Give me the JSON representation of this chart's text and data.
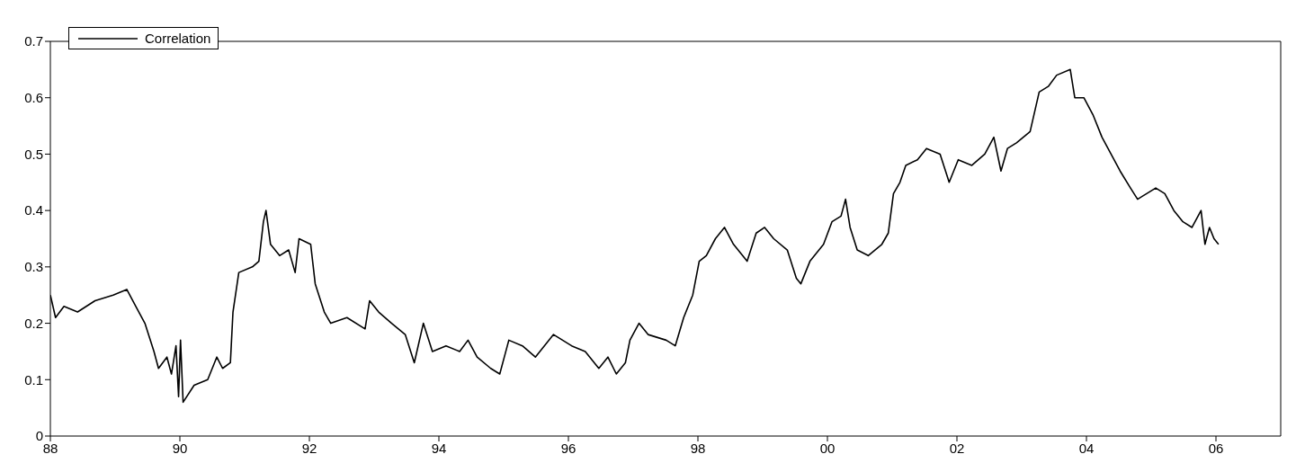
{
  "chart_data": {
    "type": "line",
    "legend": "top left",
    "grid": false,
    "marker": "none",
    "line_style": "solid",
    "xlim": [
      1988,
      2007
    ],
    "xticks": [
      {
        "value": 1988,
        "label": "88"
      },
      {
        "value": 1990,
        "label": "90"
      },
      {
        "value": 1992,
        "label": "92"
      },
      {
        "value": 1994,
        "label": "94"
      },
      {
        "value": 1996,
        "label": "96"
      },
      {
        "value": 1998,
        "label": "98"
      },
      {
        "value": 2000,
        "label": "00"
      },
      {
        "value": 2002,
        "label": "02"
      },
      {
        "value": 2004,
        "label": "04"
      },
      {
        "value": 2006,
        "label": "06"
      }
    ],
    "ylim": [
      0,
      0.7
    ],
    "yticks": [
      0,
      0.1,
      0.2,
      0.3,
      0.4,
      0.5,
      0.6,
      0.7
    ],
    "x": [
      1988.0,
      1988.08,
      1988.21,
      1988.42,
      1988.69,
      1988.97,
      1989.18,
      1989.32,
      1989.46,
      1989.6,
      1989.67,
      1989.8,
      1989.87,
      1989.94,
      1989.98,
      1990.01,
      1990.05,
      1990.22,
      1990.43,
      1990.57,
      1990.66,
      1990.78,
      1990.82,
      1990.91,
      1991.12,
      1991.22,
      1991.29,
      1991.33,
      1991.4,
      1991.54,
      1991.68,
      1991.78,
      1991.84,
      1992.02,
      1992.09,
      1992.23,
      1992.33,
      1992.58,
      1992.86,
      1992.93,
      1993.07,
      1993.27,
      1993.48,
      1993.62,
      1993.76,
      1993.9,
      1994.11,
      1994.32,
      1994.45,
      1994.59,
      1994.8,
      1994.94,
      1995.08,
      1995.29,
      1995.49,
      1995.77,
      1996.05,
      1996.26,
      1996.47,
      1996.61,
      1996.74,
      1996.88,
      1996.95,
      1997.09,
      1997.23,
      1997.51,
      1997.65,
      1997.78,
      1997.92,
      1998.02,
      1998.13,
      1998.27,
      1998.41,
      1998.55,
      1998.76,
      1998.9,
      1999.03,
      1999.17,
      1999.38,
      1999.52,
      1999.59,
      1999.73,
      1999.94,
      2000.07,
      2000.21,
      2000.28,
      2000.35,
      2000.46,
      2000.63,
      2000.84,
      2000.94,
      2001.02,
      2001.12,
      2001.21,
      2001.39,
      2001.53,
      2001.74,
      2001.88,
      2002.02,
      2002.23,
      2002.43,
      2002.57,
      2002.68,
      2002.78,
      2002.92,
      2003.13,
      2003.27,
      2003.41,
      2003.54,
      2003.75,
      2003.82,
      2003.96,
      2004.1,
      2004.24,
      2004.38,
      2004.52,
      2004.68,
      2004.79,
      2004.93,
      2005.07,
      2005.21,
      2005.35,
      2005.49,
      2005.63,
      2005.77,
      2005.83,
      2005.9,
      2005.97,
      2006.04
    ],
    "series": [
      {
        "name": "Correlation",
        "color": "#000000",
        "values": [
          0.25,
          0.21,
          0.23,
          0.22,
          0.24,
          0.25,
          0.26,
          0.23,
          0.2,
          0.15,
          0.12,
          0.14,
          0.11,
          0.16,
          0.07,
          0.17,
          0.06,
          0.09,
          0.1,
          0.14,
          0.12,
          0.13,
          0.22,
          0.29,
          0.3,
          0.31,
          0.38,
          0.4,
          0.34,
          0.32,
          0.33,
          0.29,
          0.35,
          0.34,
          0.27,
          0.22,
          0.2,
          0.21,
          0.19,
          0.24,
          0.22,
          0.2,
          0.18,
          0.13,
          0.2,
          0.15,
          0.16,
          0.15,
          0.17,
          0.14,
          0.12,
          0.11,
          0.17,
          0.16,
          0.14,
          0.18,
          0.16,
          0.15,
          0.12,
          0.14,
          0.11,
          0.13,
          0.17,
          0.2,
          0.18,
          0.17,
          0.16,
          0.21,
          0.25,
          0.31,
          0.32,
          0.35,
          0.37,
          0.34,
          0.31,
          0.36,
          0.37,
          0.35,
          0.33,
          0.28,
          0.27,
          0.31,
          0.34,
          0.38,
          0.39,
          0.42,
          0.37,
          0.33,
          0.32,
          0.34,
          0.36,
          0.43,
          0.45,
          0.48,
          0.49,
          0.51,
          0.5,
          0.45,
          0.49,
          0.48,
          0.5,
          0.53,
          0.47,
          0.51,
          0.52,
          0.54,
          0.61,
          0.62,
          0.64,
          0.65,
          0.6,
          0.6,
          0.57,
          0.53,
          0.5,
          0.47,
          0.44,
          0.42,
          0.43,
          0.44,
          0.43,
          0.4,
          0.38,
          0.37,
          0.4,
          0.34,
          0.37,
          0.35,
          0.34
        ]
      }
    ]
  }
}
